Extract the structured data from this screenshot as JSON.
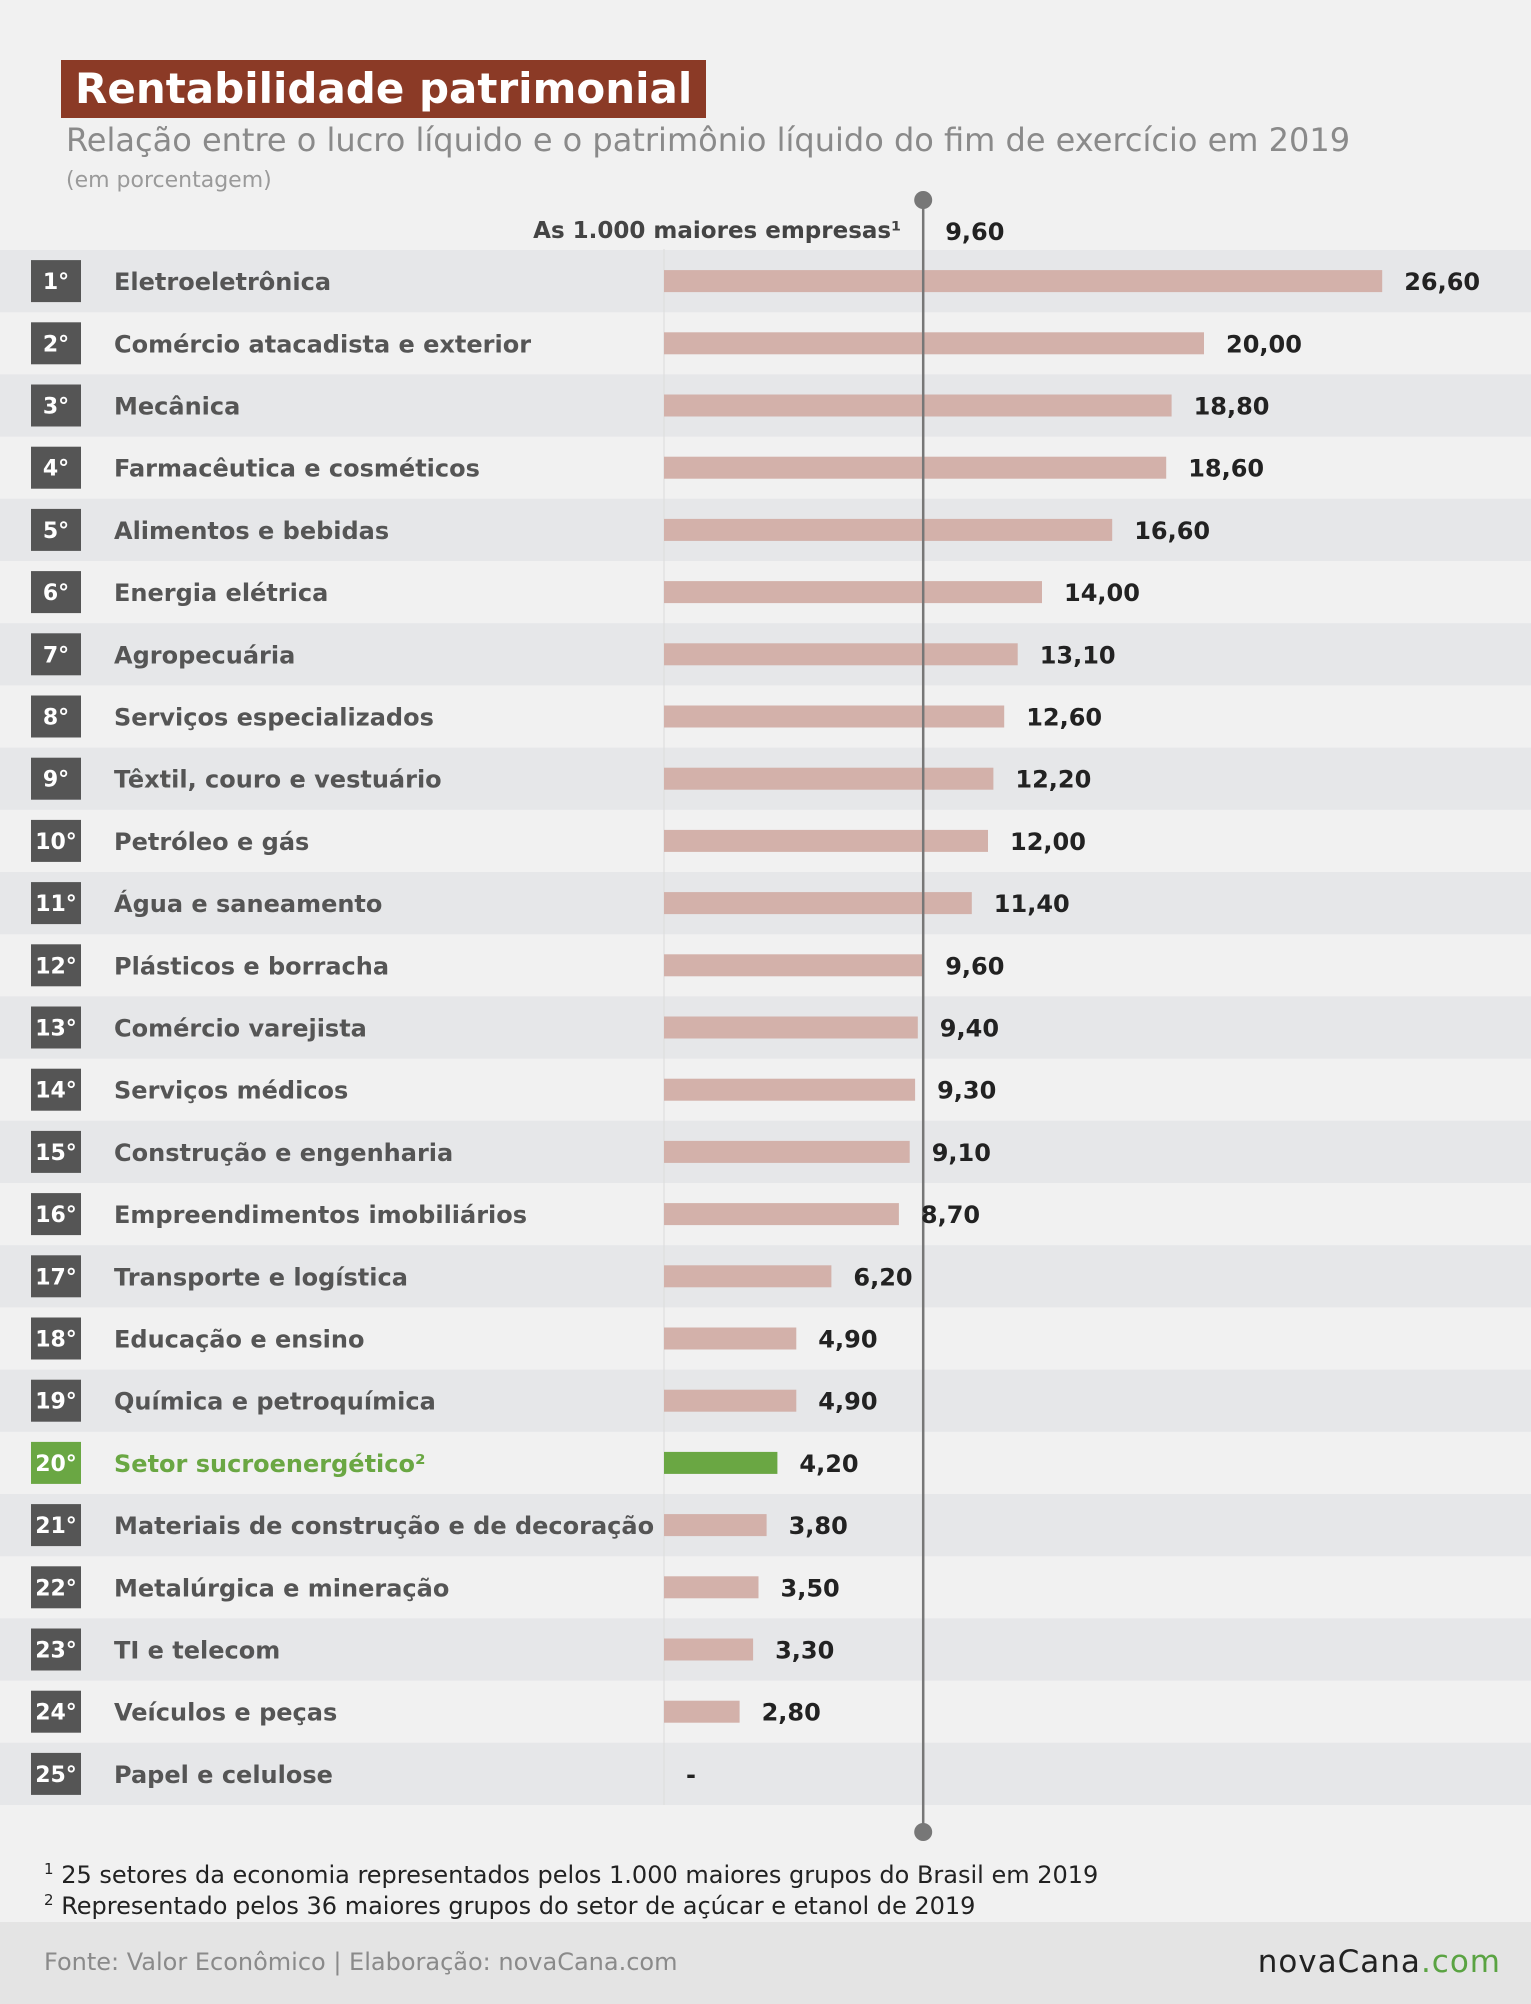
{
  "header": {
    "title": "Rentabilidade patrimonial",
    "subtitle": "Relação entre o lucro líquido e o patrimônio líquido do fim de exercício em 2019",
    "unit": "(em porcentagem)"
  },
  "chart_data": {
    "type": "bar",
    "orientation": "horizontal",
    "title": "Rentabilidade patrimonial",
    "subtitle": "Relação entre o lucro líquido e o patrimônio líquido do fim de exercício em 2019",
    "ranks": [
      "1°",
      "2°",
      "3°",
      "4°",
      "5°",
      "6°",
      "7°",
      "8°",
      "9°",
      "10°",
      "11°",
      "12°",
      "13°",
      "14°",
      "15°",
      "16°",
      "17°",
      "18°",
      "19°",
      "20°",
      "21°",
      "22°",
      "23°",
      "24°",
      "25°"
    ],
    "categories": [
      "Eletroeletrônica",
      "Comércio atacadista e exterior",
      "Mecânica",
      "Farmacêutica e cosméticos",
      "Alimentos e bebidas",
      "Energia elétrica",
      "Agropecuária",
      "Serviços especializados",
      "Têxtil, couro e vestuário",
      "Petróleo e gás",
      "Água e saneamento",
      "Plásticos e borracha",
      "Comércio varejista",
      "Serviços médicos",
      "Construção e engenharia",
      "Empreendimentos imobiliários",
      "Transporte e logística",
      "Educação e ensino",
      "Química e petroquímica",
      "Setor sucroenergético²",
      "Materiais de construção e de decoração",
      "Metalúrgica e mineração",
      "TI e telecom",
      "Veículos e peças",
      "Papel e celulose"
    ],
    "values": [
      26.6,
      20.0,
      18.8,
      18.6,
      16.6,
      14.0,
      13.1,
      12.6,
      12.2,
      12.0,
      11.4,
      9.6,
      9.4,
      9.3,
      9.1,
      8.7,
      6.2,
      4.9,
      4.9,
      4.2,
      3.8,
      3.5,
      3.3,
      2.8,
      null
    ],
    "value_labels": [
      "26,60",
      "20,00",
      "18,80",
      "18,60",
      "16,60",
      "14,00",
      "13,10",
      "12,60",
      "12,20",
      "12,00",
      "11,40",
      "9,60",
      "9,40",
      "9,30",
      "9,10",
      "8,70",
      "6,20",
      "4,90",
      "4,90",
      "4,20",
      "3,80",
      "3,50",
      "3,30",
      "2,80",
      "-"
    ],
    "highlight_index": 19,
    "reference_line": {
      "label": "As 1.000 maiores empresas¹",
      "value": 9.6,
      "value_label": "9,60"
    },
    "colors": {
      "bar": "#d3b1aa",
      "highlight": "#6aa743",
      "rank_box": "#555555",
      "label_text": "#555555",
      "value_text": "#222222",
      "row_alt": "#e6e7e9",
      "reference_line": "#777777"
    }
  },
  "footnotes": {
    "note1_mark": "1",
    "note1": "25 setores da economia representados pelos 1.000 maiores grupos do Brasil em 2019",
    "note2_mark": "2",
    "note2": "Representado pelos 36 maiores grupos do setor de açúcar e etanol de 2019"
  },
  "footer": {
    "source": "Fonte: Valor Econômico | Elaboração: novaCana.com",
    "logo_main": "novaCana",
    "logo_suffix": ".com"
  }
}
